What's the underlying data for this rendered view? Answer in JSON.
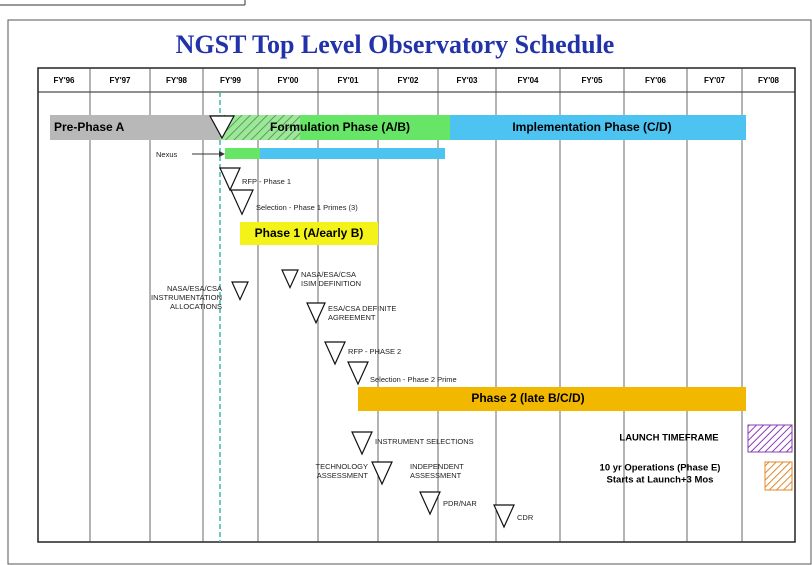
{
  "title": "NGST Top Level Observatory Schedule",
  "fiscal_years": [
    "FY'96",
    "FY'97",
    "FY'98",
    "FY'99",
    "FY'00",
    "FY'01",
    "FY'02",
    "FY'03",
    "FY'04",
    "FY'05",
    "FY'06",
    "FY'07",
    "FY'08"
  ],
  "phases": [
    {
      "label": "Pre-Phase A"
    },
    {
      "label": "Formulation Phase (A/B)"
    },
    {
      "label": "Implementation Phase (C/D)"
    },
    {
      "label": "Phase 1 (A/early B)"
    },
    {
      "label": "Phase 2 (late B/C/D)"
    }
  ],
  "nexus_label": "Nexus",
  "milestones": [
    {
      "lines": [
        "RFP - Phase 1"
      ]
    },
    {
      "lines": [
        "Selection - Phase 1 Primes (3)"
      ]
    },
    {
      "lines": [
        "NASA/ESA/CSA",
        "INSTRUMENTATION",
        "ALLOCATIONS"
      ]
    },
    {
      "lines": [
        "NASA/ESA/CSA",
        "ISIM DEFINITION"
      ]
    },
    {
      "lines": [
        "ESA/CSA DEFINITE",
        "AGREEMENT"
      ]
    },
    {
      "lines": [
        "RFP - PHASE 2"
      ]
    },
    {
      "lines": [
        "Selection - Phase 2 Prime"
      ]
    },
    {
      "lines": [
        "INSTRUMENT SELECTIONS"
      ]
    },
    {
      "lines": [
        "TECHNOLOGY",
        "ASSESSMENT"
      ]
    },
    {
      "lines": [
        "INDEPENDENT",
        "ASSESSMENT"
      ]
    },
    {
      "lines": [
        "PDR/NAR"
      ]
    },
    {
      "lines": [
        "CDR"
      ]
    }
  ],
  "legend": [
    {
      "lines": [
        "LAUNCH TIMEFRAME"
      ]
    },
    {
      "lines": [
        "10 yr Operations (Phase E)",
        "Starts at Launch+3 Mos"
      ]
    }
  ]
}
